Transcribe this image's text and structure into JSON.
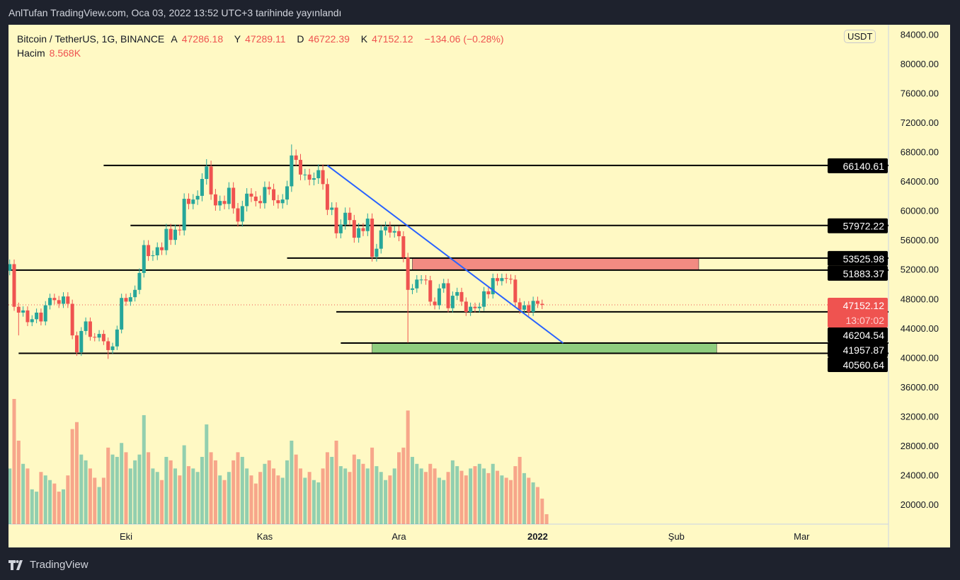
{
  "published": "AnlTufan TradingView.com, Oca 03, 2022 13:52 UTC+3 tarihinde yayınlandı",
  "legend": {
    "symbol": "Bitcoin / TetherUS, 1G, BINANCE",
    "open_label": "A",
    "open": "47286.18",
    "high_label": "Y",
    "high": "47289.11",
    "low_label": "D",
    "low": "46722.39",
    "close_label": "K",
    "close": "47152.12",
    "change": "−134.06 (−0.28%)",
    "volume_label": "Hacim",
    "volume": "8.568K"
  },
  "currency": "USDT",
  "brand": "TradingView",
  "colors": {
    "up": "#26a69a",
    "down": "#ef5350",
    "bg": "#fff9c4",
    "trend": "#2962ff",
    "resistance_zone": "#f28b82",
    "support_zone": "#8fce7f"
  },
  "chart_data": {
    "type": "candlestick",
    "first_date": "2021-09-05",
    "closes": [
      52700,
      46900,
      46100,
      46400,
      44800,
      45200,
      46100,
      44900,
      47100,
      48100,
      47800,
      47300,
      48300,
      47300,
      43000,
      40700,
      43600,
      44900,
      42800,
      42700,
      43200,
      42200,
      41000,
      41500,
      43800,
      48100,
      47600,
      48200,
      49200,
      51500,
      55300,
      53800,
      53900,
      55000,
      54600,
      57500,
      56000,
      57400,
      57300,
      61600,
      60900,
      61500,
      62000,
      64300,
      66000,
      62200,
      60700,
      61300,
      60900,
      63100,
      60300,
      58500,
      60600,
      62300,
      61900,
      61300,
      61000,
      63200,
      62900,
      61400,
      61000,
      61500,
      63300,
      67500,
      66900,
      64900,
      64900,
      64200,
      64400,
      65500,
      63600,
      60100,
      60400,
      56900,
      58100,
      59700,
      58700,
      56300,
      57600,
      57200,
      58900,
      53700,
      54800,
      57300,
      57800,
      57000,
      57200,
      56500,
      53600,
      49200,
      49400,
      50600,
      50600,
      50500,
      47600,
      47100,
      49400,
      50100,
      46700,
      48400,
      48900,
      47600,
      46200,
      46900,
      46700,
      46900,
      49000,
      48600,
      50800,
      50400,
      50800,
      50700,
      50600,
      47500,
      46500,
      47100,
      46200,
      47700,
      47300,
      47152.12
    ],
    "first_open": 51800,
    "extreme_lows": {
      "2": 43000,
      "89": 42000,
      "22": 39800
    },
    "extreme_highs": {
      "63": 69000,
      "44": 67000
    },
    "volumes": [
      48,
      108,
      72,
      52,
      48,
      30,
      28,
      45,
      42,
      38,
      35,
      28,
      30,
      42,
      82,
      88,
      60,
      55,
      48,
      40,
      32,
      40,
      66,
      60,
      58,
      70,
      62,
      48,
      55,
      60,
      94,
      62,
      48,
      45,
      38,
      58,
      55,
      48,
      42,
      68,
      50,
      48,
      45,
      58,
      86,
      62,
      55,
      42,
      38,
      45,
      55,
      62,
      58,
      48,
      42,
      35,
      45,
      52,
      55,
      48,
      42,
      40,
      55,
      72,
      60,
      48,
      40,
      45,
      38,
      36,
      48,
      62,
      58,
      72,
      50,
      48,
      45,
      60,
      56,
      52,
      48,
      66,
      50,
      45,
      38,
      42,
      48,
      62,
      66,
      98,
      58,
      52,
      48,
      45,
      52,
      48,
      40,
      38,
      45,
      55,
      50,
      46,
      42,
      48,
      50,
      52,
      48,
      44,
      52,
      46,
      42,
      40,
      38,
      50,
      58,
      44,
      40,
      36,
      32,
      22,
      8.568
    ],
    "yaxis": {
      "min": 17000,
      "max": 84000,
      "ticks": [
        84000,
        80000,
        76000,
        72000,
        68000,
        64000,
        60000,
        56000,
        52000,
        48000,
        44000,
        40000,
        36000,
        32000,
        28000,
        24000,
        20000
      ]
    },
    "xaxis_labels": [
      {
        "label": "Eki",
        "day": 26
      },
      {
        "label": "Kas",
        "day": 57
      },
      {
        "label": "Ara",
        "day": 87
      },
      {
        "label": "2022",
        "day": 118,
        "bold": true
      },
      {
        "label": "Şub",
        "day": 149
      },
      {
        "label": "Mar",
        "day": 177
      }
    ],
    "levels": [
      {
        "price": 66140.61,
        "label": "66140.61",
        "from_day": 21
      },
      {
        "price": 57972.22,
        "label": "57972.22",
        "from_day": 27
      },
      {
        "price": 53525.98,
        "label": "53525.98",
        "from_day": 62
      },
      {
        "price": 51883.37,
        "label": "51883.37",
        "from_day": 0
      },
      {
        "price": 46204.54,
        "label": "46204.54",
        "from_day": 73
      },
      {
        "price": 41957.87,
        "label": "41957.87",
        "from_day": 74
      },
      {
        "price": 40560.64,
        "label": "40560.64",
        "from_day": 2
      }
    ],
    "zones": [
      {
        "kind": "resistance",
        "top": 53525.98,
        "bottom": 51883.37,
        "from_day": 90,
        "to_day": 154
      },
      {
        "kind": "support",
        "top": 41957.87,
        "bottom": 40560.64,
        "from_day": 81,
        "to_day": 158
      }
    ],
    "trendline": {
      "from_day": 71,
      "from_price": 66140.61,
      "to_day": 123.7,
      "to_price": 41957.87
    },
    "last_price": {
      "value": "47152.12",
      "countdown": "13:07:02"
    }
  }
}
